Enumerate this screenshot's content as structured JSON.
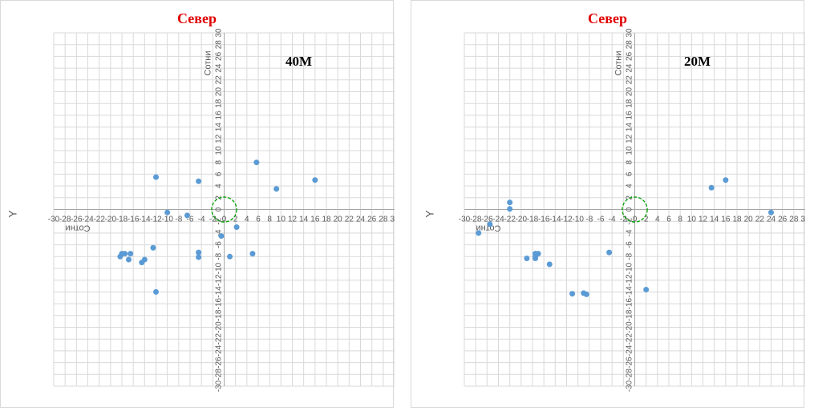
{
  "chart_data": [
    {
      "type": "scatter",
      "title": "Север",
      "label": "40M",
      "xlabel": "Сотни",
      "ylabel": "Сотни",
      "outer_ylabel": "Y",
      "xlim": [
        -30,
        30
      ],
      "ylim": [
        -30,
        30
      ],
      "tick_step": 2,
      "grid": true,
      "circle": {
        "center": [
          0,
          0
        ],
        "radius": 2.2,
        "color": "#00a000"
      },
      "point_color": "#5b9bd5",
      "points": [
        [
          -12,
          5.5
        ],
        [
          -4.5,
          4.8
        ],
        [
          5.7,
          8
        ],
        [
          9.2,
          3.5
        ],
        [
          16,
          5
        ],
        [
          -10,
          -0.5
        ],
        [
          -6.5,
          -1
        ],
        [
          2.2,
          -3
        ],
        [
          -0.5,
          -4.5
        ],
        [
          -12.5,
          -6.5
        ],
        [
          -17.5,
          -7.5
        ],
        [
          -18,
          -7.5
        ],
        [
          -16.5,
          -7.5
        ],
        [
          -18.3,
          -8
        ],
        [
          -16.8,
          -8.5
        ],
        [
          -14,
          -8.5
        ],
        [
          -14.5,
          -9
        ],
        [
          -4.5,
          -7.3
        ],
        [
          -4.5,
          -8.1
        ],
        [
          1,
          -8
        ],
        [
          5,
          -7.5
        ],
        [
          -12,
          -14
        ]
      ]
    },
    {
      "type": "scatter",
      "title": "Север",
      "label": "20M",
      "xlabel": "Сотни",
      "ylabel": "Сотни",
      "outer_ylabel": "Y",
      "xlim": [
        -30,
        30
      ],
      "ylim": [
        -30,
        30
      ],
      "tick_step": 2,
      "grid": true,
      "circle": {
        "center": [
          0,
          0
        ],
        "radius": 2.2,
        "color": "#00a000"
      },
      "point_color": "#5b9bd5",
      "points": [
        [
          -22,
          1.2
        ],
        [
          -22,
          0.1
        ],
        [
          13.5,
          3.7
        ],
        [
          16,
          5
        ],
        [
          24,
          -0.5
        ],
        [
          -25.5,
          -2.5
        ],
        [
          -27.5,
          -4
        ],
        [
          -17.5,
          -7.5
        ],
        [
          -17,
          -7.5
        ],
        [
          -17.5,
          -8
        ],
        [
          -17.5,
          -8.3
        ],
        [
          -19,
          -8.3
        ],
        [
          -15,
          -9.3
        ],
        [
          -4.5,
          -7.3
        ],
        [
          -11,
          -14.3
        ],
        [
          -9,
          -14.2
        ],
        [
          -8.5,
          -14.4
        ],
        [
          2,
          -13.6
        ]
      ]
    }
  ]
}
